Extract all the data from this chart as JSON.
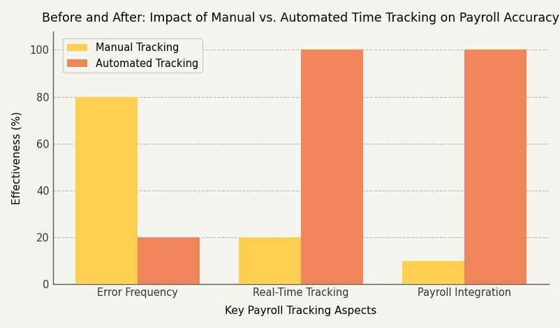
{
  "title": "Before and After: Impact of Manual vs. Automated Time Tracking on Payroll Accuracy",
  "xlabel": "Key Payroll Tracking Aspects",
  "ylabel": "Effectiveness (%)",
  "categories": [
    "Error Frequency",
    "Real-Time Tracking",
    "Payroll Integration"
  ],
  "manual_values": [
    80,
    20,
    10
  ],
  "automated_values": [
    20,
    100,
    100
  ],
  "manual_color": "#FFD050",
  "automated_color": "#F0845A",
  "manual_label": "Manual Tracking",
  "automated_label": "Automated Tracking",
  "ylim": [
    0,
    108
  ],
  "yticks": [
    0,
    20,
    40,
    60,
    80,
    100
  ],
  "bar_width": 0.38,
  "background_color": "#F5F5F0",
  "grid_color": "#BBBBBB",
  "title_fontsize": 12.5,
  "label_fontsize": 11,
  "tick_fontsize": 10.5,
  "legend_fontsize": 10.5,
  "spine_color": "#555555"
}
